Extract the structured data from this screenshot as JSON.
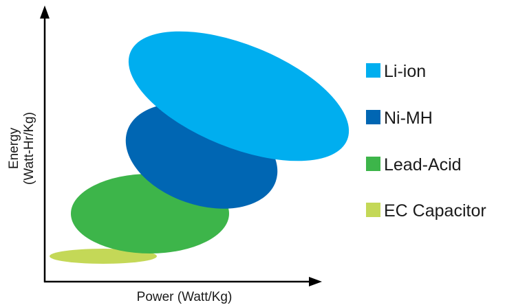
{
  "chart_data": {
    "type": "scatter",
    "title": "",
    "xlabel": "Power (Watt/Kg)",
    "ylabel_lines": [
      "Energy",
      "(Watt-Hr/Kg)"
    ],
    "grid": false,
    "legend_position": "right",
    "series": [
      {
        "name": "Li-ion",
        "color": "#00aeef"
      },
      {
        "name": "Ni-MH",
        "color": "#0066b3"
      },
      {
        "name": "Lead-Acid",
        "color": "#3db54a"
      },
      {
        "name": "EC Capacitor",
        "color": "#c4d857"
      }
    ]
  }
}
